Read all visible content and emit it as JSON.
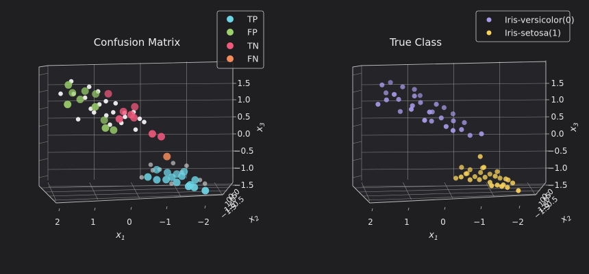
{
  "chart_data": [
    {
      "type": "scatter",
      "title": "Confusion Matrix",
      "xlabel": "x1",
      "ylabel": "x2",
      "zlabel": "x3",
      "x_ticks": [
        "2",
        "1",
        "0",
        "−1",
        "−2"
      ],
      "y_ticks": [
        "1.5",
        "1.0",
        "0.5",
        "0.0",
        "−0.5",
        "−1.5"
      ],
      "z_ticks": [
        "1.5",
        "1.0",
        "0.5",
        "0.0",
        "−0.5",
        "−1.0",
        "−1.5"
      ],
      "legend": {
        "position": "top-right",
        "entries": [
          {
            "label": "TP",
            "color": "#6cd4e4"
          },
          {
            "label": "FP",
            "color": "#9bd16b"
          },
          {
            "label": "TN",
            "color": "#f0587c"
          },
          {
            "label": "FN",
            "color": "#f58b5a"
          }
        ]
      },
      "unlabeled_color": "#f2f2f2",
      "series": [
        {
          "name": "TP",
          "color": "#6cd4e4",
          "points": [
            [
              -1.6,
              0.6,
              -1.3
            ],
            [
              -1.2,
              0.5,
              -1.25
            ],
            [
              -1.4,
              0.2,
              -1.1
            ],
            [
              -1.1,
              0.1,
              -1.15
            ],
            [
              -1.5,
              -0.1,
              -1.0
            ],
            [
              -0.9,
              0.3,
              -1.2
            ],
            [
              -1.3,
              -0.3,
              -1.1
            ],
            [
              -1.7,
              0.8,
              -1.35
            ],
            [
              -1.0,
              -0.2,
              -1.05
            ],
            [
              -0.6,
              0.4,
              -1.2
            ],
            [
              -1.8,
              0.2,
              -1.2
            ],
            [
              -0.7,
              -0.4,
              -1.0
            ],
            [
              -2.0,
              1.1,
              -1.4
            ],
            [
              -1.5,
              1.0,
              -1.3
            ],
            [
              -0.3,
              0.6,
              -1.1
            ]
          ]
        },
        {
          "name": "FP",
          "color": "#9bd16b",
          "points": [
            [
              2.1,
              0.3,
              1.5
            ],
            [
              1.9,
              -0.3,
              1.2
            ],
            [
              2.2,
              0.9,
              1.0
            ],
            [
              1.5,
              -0.4,
              1.25
            ],
            [
              1.3,
              0.5,
              0.9
            ],
            [
              0.7,
              0.2,
              0.2
            ],
            [
              0.9,
              -0.5,
              0.4
            ],
            [
              1.0,
              0.6,
              0.3
            ],
            [
              1.7,
              0.0,
              1.05
            ],
            [
              1.15,
              -0.6,
              1.15
            ]
          ]
        },
        {
          "name": "TN",
          "color": "#f0587c",
          "points": [
            [
              0.6,
              0.8,
              0.6
            ],
            [
              0.2,
              0.5,
              0.7
            ],
            [
              0.4,
              0.2,
              0.75
            ],
            [
              0.8,
              -0.3,
              1.2
            ],
            [
              -0.4,
              0.9,
              0.2
            ],
            [
              -0.7,
              0.7,
              0.1
            ],
            [
              0.0,
              -0.2,
              0.85
            ],
            [
              0.1,
              0.4,
              0.6
            ]
          ]
        },
        {
          "name": "FN",
          "color": "#f58b5a",
          "points": [
            [
              -0.9,
              0.5,
              -0.5
            ]
          ]
        }
      ]
    },
    {
      "type": "scatter",
      "title": "True Class",
      "xlabel": "x1",
      "ylabel": "x2",
      "zlabel": "x3",
      "x_ticks": [
        "2",
        "1",
        "0",
        "−1",
        "−2"
      ],
      "y_ticks": [
        "1.5",
        "1.0",
        "0.5",
        "0.0",
        "−0.5",
        "−1.5"
      ],
      "z_ticks": [
        "1.5",
        "1.0",
        "0.5",
        "0.0",
        "−0.5",
        "−1.0",
        "−1.5"
      ],
      "legend": {
        "position": "top-right",
        "entries": [
          {
            "label": "Iris-versicolor(0)",
            "color": "#a99bea"
          },
          {
            "label": "Iris-setosa(1)",
            "color": "#f7d15b"
          }
        ]
      },
      "series": [
        {
          "name": "Iris-versicolor(0)",
          "color": "#a99bea",
          "points": [
            [
              2.1,
              0.3,
              1.5
            ],
            [
              2.3,
              0.9,
              1.0
            ],
            [
              1.9,
              -0.3,
              1.2
            ],
            [
              1.6,
              0.4,
              1.1
            ],
            [
              1.4,
              -0.2,
              1.4
            ],
            [
              1.2,
              0.6,
              0.95
            ],
            [
              1.0,
              -0.5,
              1.3
            ],
            [
              0.9,
              0.2,
              1.0
            ],
            [
              0.7,
              0.8,
              0.8
            ],
            [
              0.5,
              -0.1,
              0.7
            ],
            [
              0.3,
              0.5,
              0.6
            ],
            [
              0.1,
              -0.4,
              0.8
            ],
            [
              -0.1,
              0.3,
              0.5
            ],
            [
              -0.3,
              0.7,
              0.3
            ],
            [
              -0.5,
              -0.2,
              0.4
            ],
            [
              1.8,
              0.9,
              1.3
            ],
            [
              1.3,
              1.1,
              0.9
            ],
            [
              0.8,
              -0.7,
              1.1
            ],
            [
              0.4,
              0.1,
              0.95
            ],
            [
              0.2,
              0.9,
              0.4
            ],
            [
              -0.2,
              -0.6,
              0.6
            ],
            [
              1.5,
              0.0,
              0.7
            ],
            [
              1.1,
              0.3,
              1.2
            ],
            [
              0.6,
              0.5,
              0.5
            ],
            [
              -0.6,
              0.4,
              0.1
            ],
            [
              -0.9,
              0.8,
              0.2
            ],
            [
              0.0,
              1.0,
              0.3
            ],
            [
              1.7,
              -0.8,
              1.45
            ],
            [
              2.0,
              0.6,
              1.1
            ],
            [
              0.9,
              1.2,
              0.6
            ]
          ]
        },
        {
          "name": "Iris-setosa(1)",
          "color": "#f7d15b",
          "points": [
            [
              -1.6,
              0.6,
              -1.3
            ],
            [
              -1.2,
              0.5,
              -1.25
            ],
            [
              -1.4,
              0.2,
              -1.1
            ],
            [
              -1.1,
              0.1,
              -1.15
            ],
            [
              -1.5,
              -0.1,
              -1.0
            ],
            [
              -0.9,
              0.3,
              -1.2
            ],
            [
              -1.3,
              -0.3,
              -1.1
            ],
            [
              -1.7,
              0.8,
              -1.35
            ],
            [
              -1.0,
              -0.2,
              -1.05
            ],
            [
              -0.6,
              0.4,
              -1.2
            ],
            [
              -1.8,
              0.2,
              -1.2
            ],
            [
              -0.7,
              -0.4,
              -1.0
            ],
            [
              -2.0,
              1.1,
              -1.4
            ],
            [
              -1.5,
              1.0,
              -1.3
            ],
            [
              -0.3,
              0.6,
              -1.1
            ],
            [
              -0.9,
              0.5,
              -0.5
            ],
            [
              -0.4,
              -0.1,
              -0.9
            ],
            [
              -1.2,
              0.9,
              -1.3
            ],
            [
              -0.8,
              0.0,
              -1.15
            ],
            [
              -1.9,
              0.5,
              -1.25
            ],
            [
              -0.5,
              0.2,
              -1.05
            ],
            [
              -1.1,
              -0.5,
              -0.95
            ],
            [
              -1.6,
              -0.2,
              -1.2
            ],
            [
              -0.2,
              0.1,
              -1.2
            ],
            [
              -1.4,
              0.7,
              -1.3
            ],
            [
              -1.0,
              0.6,
              -0.8
            ],
            [
              -0.6,
              -0.3,
              -1.1
            ],
            [
              -1.7,
              0.4,
              -1.15
            ]
          ]
        }
      ]
    }
  ]
}
